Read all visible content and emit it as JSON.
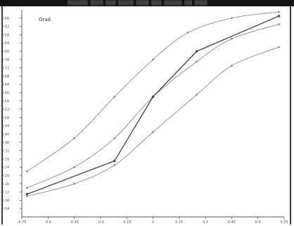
{
  "window": {
    "title_strip": "▒▒▒▒▒▒▒▒ ▒▒▒▒▒ ▒▒▒▒ ▒▒▒▒▒▒ ▒▒▒▒▒ ▒▒▒▒ ▒▒▒▒▒▒▒ ▒▒▒ ▒▒▒▒▒"
  },
  "chart_data": {
    "type": "line",
    "title": "",
    "xlabel": "",
    "ylabel": "",
    "legend_text": "Grad",
    "legend_position": "top-left",
    "grid": false,
    "colors": {
      "axis": "#555555",
      "series_dark": "#4a4a4a",
      "series_light": "#8a8a8a"
    },
    "xlim": [
      -0.75,
      0.75
    ],
    "ylim": [
      0.0,
      1.0
    ],
    "x_ticks": [
      "-0.75",
      "-0.6",
      "-0.45",
      "-0.3",
      "-0.15",
      "0",
      "0.15",
      "0.3",
      "0.45",
      "0.6",
      "0.75"
    ],
    "y_ticks": [
      "0.04",
      "0.08",
      "0.12",
      "0.16",
      "0.20",
      "0.24",
      "0.28",
      "0.32",
      "0.36",
      "0.40",
      "0.44",
      "0.48",
      "0.52",
      "0.56",
      "0.60",
      "0.64",
      "0.68",
      "0.72",
      "0.76",
      "0.80",
      "0.84",
      "0.88",
      "0.92",
      "0.96"
    ],
    "series": [
      {
        "style": "light",
        "x": [
          -0.72,
          -0.45,
          -0.22,
          0.0,
          0.2,
          0.45,
          0.72
        ],
        "y": [
          0.22,
          0.38,
          0.58,
          0.76,
          0.89,
          0.96,
          0.99
        ]
      },
      {
        "style": "light",
        "x": [
          -0.72,
          -0.45,
          -0.22,
          0.0,
          0.25,
          0.45,
          0.72
        ],
        "y": [
          0.14,
          0.24,
          0.38,
          0.58,
          0.75,
          0.86,
          0.93
        ]
      },
      {
        "style": "dark",
        "x": [
          -0.72,
          -0.22,
          0.0,
          0.25,
          0.72
        ],
        "y": [
          0.11,
          0.27,
          0.58,
          0.8,
          0.97
        ]
      },
      {
        "style": "light",
        "x": [
          -0.72,
          -0.45,
          -0.22,
          0.0,
          0.25,
          0.45,
          0.72
        ],
        "y": [
          0.1,
          0.16,
          0.25,
          0.41,
          0.59,
          0.73,
          0.82
        ]
      }
    ]
  }
}
